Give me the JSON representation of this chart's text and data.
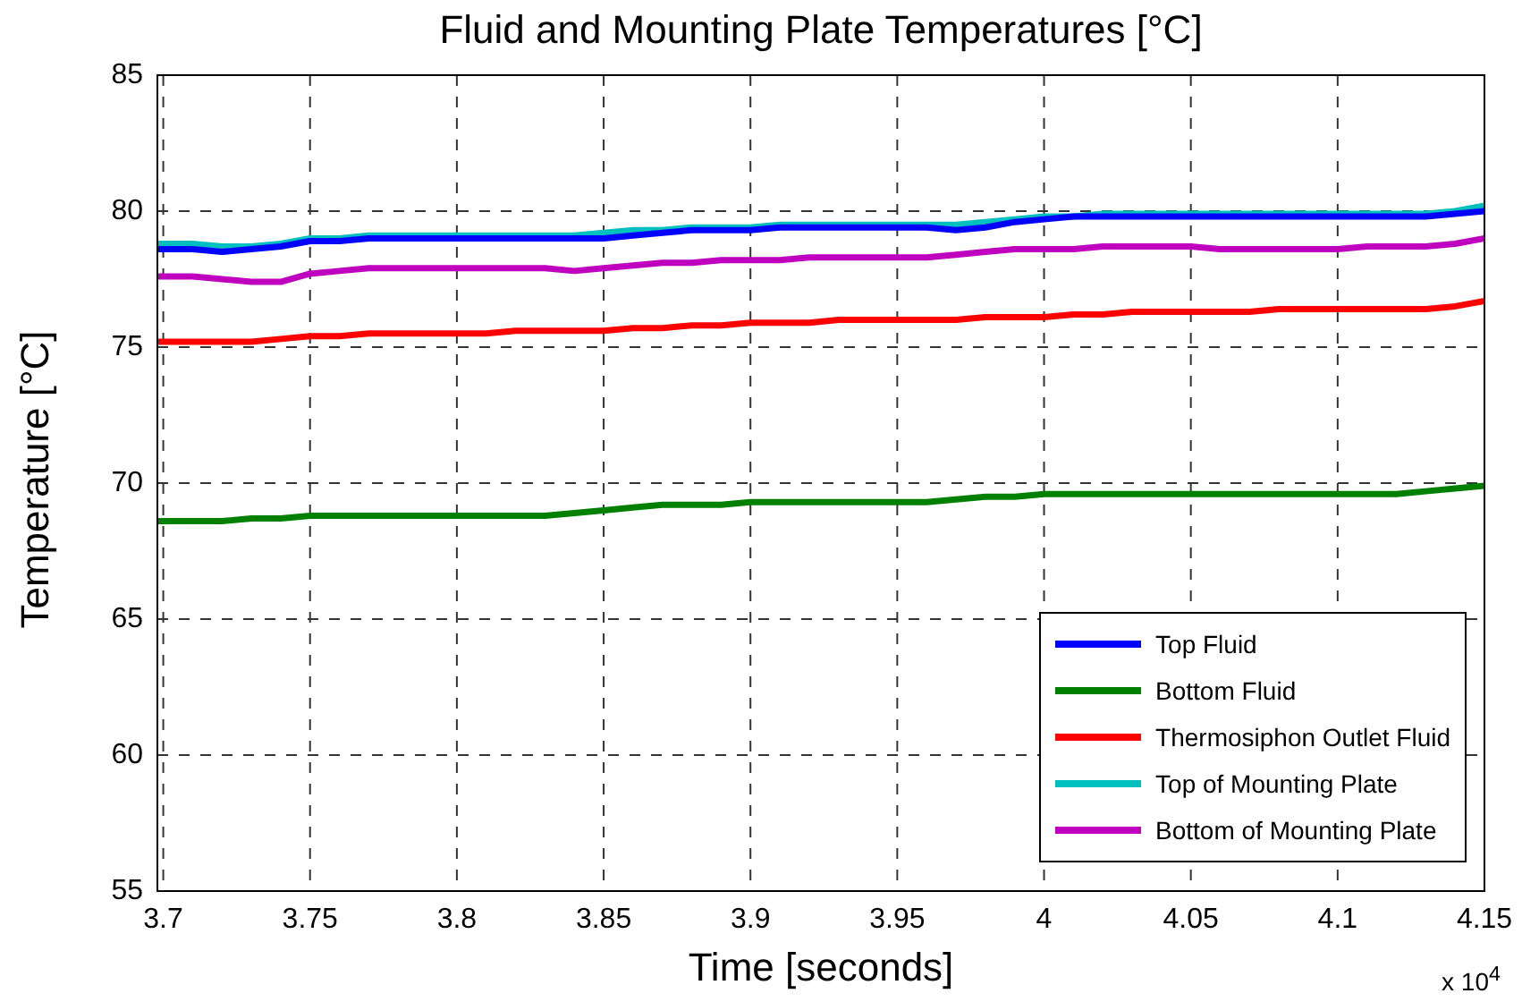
{
  "chart_data": {
    "type": "line",
    "title": "Fluid and Mounting Plate Temperatures [°C]",
    "xlabel": "Time [seconds]",
    "ylabel": "Temperature [°C]",
    "x": [
      3.698,
      3.71,
      3.72,
      3.73,
      3.74,
      3.75,
      3.76,
      3.77,
      3.78,
      3.79,
      3.8,
      3.81,
      3.82,
      3.83,
      3.84,
      3.85,
      3.86,
      3.87,
      3.88,
      3.89,
      3.9,
      3.91,
      3.92,
      3.93,
      3.94,
      3.95,
      3.96,
      3.97,
      3.98,
      3.99,
      4.0,
      4.01,
      4.02,
      4.03,
      4.04,
      4.05,
      4.06,
      4.07,
      4.08,
      4.09,
      4.1,
      4.11,
      4.12,
      4.13,
      4.14,
      4.15
    ],
    "series": [
      {
        "name": "Top Fluid",
        "color": "#0000ff",
        "values": [
          78.6,
          78.6,
          78.5,
          78.6,
          78.7,
          78.9,
          78.9,
          79.0,
          79.0,
          79.0,
          79.0,
          79.0,
          79.0,
          79.0,
          79.0,
          79.0,
          79.1,
          79.2,
          79.3,
          79.3,
          79.3,
          79.4,
          79.4,
          79.4,
          79.4,
          79.4,
          79.4,
          79.3,
          79.4,
          79.6,
          79.7,
          79.8,
          79.8,
          79.8,
          79.8,
          79.8,
          79.8,
          79.8,
          79.8,
          79.8,
          79.8,
          79.8,
          79.8,
          79.8,
          79.9,
          80.0
        ]
      },
      {
        "name": "Bottom Fluid",
        "color": "#008000",
        "values": [
          68.6,
          68.6,
          68.6,
          68.7,
          68.7,
          68.8,
          68.8,
          68.8,
          68.8,
          68.8,
          68.8,
          68.8,
          68.8,
          68.8,
          68.9,
          69.0,
          69.1,
          69.2,
          69.2,
          69.2,
          69.3,
          69.3,
          69.3,
          69.3,
          69.3,
          69.3,
          69.3,
          69.4,
          69.5,
          69.5,
          69.6,
          69.6,
          69.6,
          69.6,
          69.6,
          69.6,
          69.6,
          69.6,
          69.6,
          69.6,
          69.6,
          69.6,
          69.6,
          69.7,
          69.8,
          69.9
        ]
      },
      {
        "name": "Thermosiphon Outlet Fluid",
        "color": "#ff0000",
        "values": [
          75.2,
          75.2,
          75.2,
          75.2,
          75.3,
          75.4,
          75.4,
          75.5,
          75.5,
          75.5,
          75.5,
          75.5,
          75.6,
          75.6,
          75.6,
          75.6,
          75.7,
          75.7,
          75.8,
          75.8,
          75.9,
          75.9,
          75.9,
          76.0,
          76.0,
          76.0,
          76.0,
          76.0,
          76.1,
          76.1,
          76.1,
          76.2,
          76.2,
          76.3,
          76.3,
          76.3,
          76.3,
          76.3,
          76.4,
          76.4,
          76.4,
          76.4,
          76.4,
          76.4,
          76.5,
          76.7
        ]
      },
      {
        "name": "Top of Mounting Plate",
        "color": "#00bfbf",
        "values": [
          78.8,
          78.8,
          78.7,
          78.7,
          78.8,
          79.0,
          79.0,
          79.1,
          79.1,
          79.1,
          79.1,
          79.1,
          79.1,
          79.1,
          79.1,
          79.2,
          79.3,
          79.3,
          79.4,
          79.4,
          79.4,
          79.5,
          79.5,
          79.5,
          79.5,
          79.5,
          79.5,
          79.5,
          79.6,
          79.7,
          79.8,
          79.8,
          79.9,
          79.9,
          79.9,
          79.9,
          79.9,
          79.9,
          79.9,
          79.9,
          79.9,
          79.9,
          79.9,
          79.9,
          80.0,
          80.2
        ]
      },
      {
        "name": "Bottom of Mounting Plate",
        "color": "#bf00bf",
        "values": [
          77.6,
          77.6,
          77.5,
          77.4,
          77.4,
          77.7,
          77.8,
          77.9,
          77.9,
          77.9,
          77.9,
          77.9,
          77.9,
          77.9,
          77.8,
          77.9,
          78.0,
          78.1,
          78.1,
          78.2,
          78.2,
          78.2,
          78.3,
          78.3,
          78.3,
          78.3,
          78.3,
          78.4,
          78.5,
          78.6,
          78.6,
          78.6,
          78.7,
          78.7,
          78.7,
          78.7,
          78.6,
          78.6,
          78.6,
          78.6,
          78.6,
          78.7,
          78.7,
          78.7,
          78.8,
          79.0
        ]
      }
    ],
    "xlim": [
      3.698,
      4.15
    ],
    "xticks": [
      3.7,
      3.75,
      3.8,
      3.85,
      3.9,
      3.95,
      4,
      4.05,
      4.1,
      4.15
    ],
    "ylim": [
      55,
      85
    ],
    "yticks": [
      55,
      60,
      65,
      70,
      75,
      80,
      85
    ],
    "annotations": [
      "x 10$^{4}$"
    ],
    "grid": true,
    "legend": "bottom right",
    "marker": "none",
    "line_style": "solid"
  }
}
